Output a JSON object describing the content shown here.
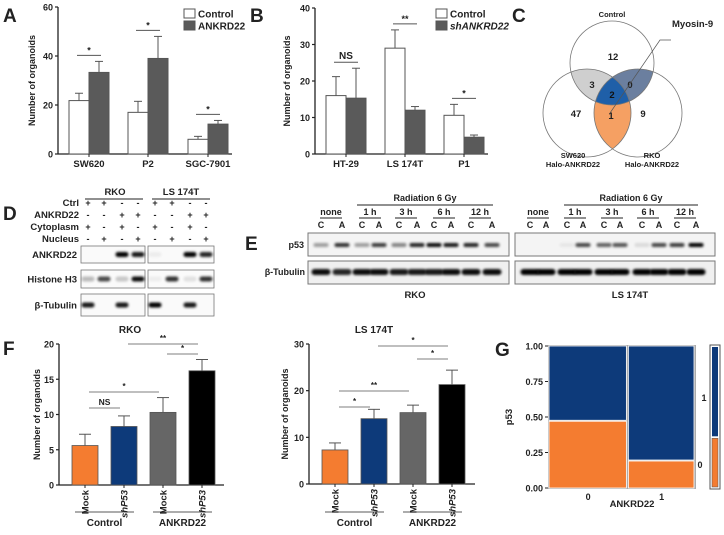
{
  "panel_labels": [
    "A",
    "B",
    "C",
    "D",
    "E",
    "F",
    "G"
  ],
  "chart_data": [
    {
      "id": "A",
      "type": "bar",
      "title": "",
      "xlabel": "",
      "ylabel": "Number of organoids",
      "ylim": [
        0,
        60
      ],
      "yticks": [
        "0",
        "20",
        "40",
        "60"
      ],
      "grid": false,
      "legend_position": "top-right",
      "categories": [
        "SW620",
        "P2",
        "SGC-7901"
      ],
      "series": [
        {
          "name": "Control",
          "values": [
            21.8,
            17.0,
            6.0
          ],
          "errors": [
            3.0,
            4.5,
            1.2
          ],
          "color": "#ffffff"
        },
        {
          "name": "ANKRD22",
          "values": [
            33.3,
            39.0,
            12.2
          ],
          "errors": [
            4.5,
            9.0,
            1.5
          ],
          "color": "#5a5a5a"
        }
      ],
      "significance": [
        "*",
        "*",
        "*"
      ]
    },
    {
      "id": "B",
      "type": "bar",
      "title": "",
      "xlabel": "",
      "ylabel": "Number of organoids",
      "ylim": [
        0,
        40
      ],
      "yticks": [
        "0",
        "10",
        "20",
        "30",
        "40"
      ],
      "grid": false,
      "legend_position": "top-right",
      "categories": [
        "HT-29",
        "LS 174T",
        "P1"
      ],
      "series": [
        {
          "name": "Control",
          "values": [
            16.0,
            29.0,
            10.6
          ],
          "errors": [
            5.2,
            5.0,
            3.0
          ],
          "color": "#ffffff"
        },
        {
          "name": "shANKRD22",
          "values": [
            15.3,
            12.0,
            4.6
          ],
          "errors": [
            8.2,
            1.0,
            0.6
          ],
          "color": "#5a5a5a"
        }
      ],
      "significance": [
        "NS",
        "**",
        "*"
      ]
    },
    {
      "id": "F1",
      "type": "bar",
      "title": "RKO",
      "xlabel": "",
      "ylabel": "Number of organoids",
      "ylim": [
        0,
        20
      ],
      "yticks": [
        "0",
        "5",
        "10",
        "15",
        "20"
      ],
      "grid": false,
      "categories": [
        "Mock",
        "shP53",
        "Mock",
        "shP53"
      ],
      "groups": [
        "Control",
        "ANKRD22"
      ],
      "values": [
        5.6,
        8.3,
        10.3,
        16.2
      ],
      "errors": [
        1.6,
        1.5,
        2.1,
        1.6
      ],
      "colors": [
        "#f47c30",
        "#0d3a7a",
        "#666666",
        "#000000"
      ],
      "significance": [
        {
          "label": "NS",
          "from": 0,
          "to": 1
        },
        {
          "label": "*",
          "from": 0,
          "to": 2
        },
        {
          "label": "**",
          "from": 1,
          "to": 3
        },
        {
          "label": "*",
          "from": 2,
          "to": 3
        }
      ]
    },
    {
      "id": "F2",
      "type": "bar",
      "title": "LS 174T",
      "xlabel": "",
      "ylabel": "Number of organoids",
      "ylim": [
        0,
        30
      ],
      "yticks": [
        "0",
        "10",
        "20",
        "30"
      ],
      "grid": false,
      "categories": [
        "Mock",
        "shP53",
        "Mock",
        "shP53"
      ],
      "groups": [
        "Control",
        "ANKRD22"
      ],
      "values": [
        7.3,
        14.0,
        15.3,
        21.3
      ],
      "errors": [
        1.5,
        2.0,
        1.6,
        3.1
      ],
      "colors": [
        "#f47c30",
        "#0d3a7a",
        "#666666",
        "#000000"
      ],
      "significance": [
        {
          "label": "*",
          "from": 0,
          "to": 1
        },
        {
          "label": "**",
          "from": 0,
          "to": 2
        },
        {
          "label": "*",
          "from": 1,
          "to": 3
        },
        {
          "label": "*",
          "from": 2,
          "to": 3
        }
      ]
    },
    {
      "id": "G",
      "type": "mosaic",
      "xlabel": "ANKRD22",
      "ylabel": "p53",
      "ylim": [
        0,
        1
      ],
      "yticks": [
        "0.00",
        "0.25",
        "0.50",
        "0.75",
        "1.00"
      ],
      "categories": [
        "0",
        "1"
      ],
      "category_share": [
        0.54,
        0.46
      ],
      "p53_levels": [
        "1",
        "0"
      ],
      "p53_zero_fraction": [
        0.47,
        0.19
      ],
      "marginal_p53_zero_fraction": 0.35,
      "colors": {
        "p53_1": "#0d3a7a",
        "p53_0": "#f47c30"
      }
    }
  ],
  "venn": {
    "sets": [
      "Control",
      "SW620",
      "Halo-ANKRD22",
      "RKO",
      "Halo-ANKRD22"
    ],
    "counts": {
      "control_only": "12",
      "control_sw620": "3",
      "control_rko": "0",
      "all_three": "2",
      "sw620_only": "47",
      "sw620_rko": "1",
      "rko_only": "9"
    },
    "callout": "Myosin-9",
    "colors": {
      "control_sw620": "#cfcfcf",
      "control_rko": "#6b7f9f",
      "all_three": "#1f5fa8",
      "sw620_rko": "#f5a063"
    }
  },
  "western_D": {
    "cell_lines": [
      "RKO",
      "LS 174T"
    ],
    "conditions": [
      {
        "name": "Ctrl",
        "marks": [
          "+",
          "+",
          "-",
          "-",
          "+",
          "+",
          "-",
          "-"
        ]
      },
      {
        "name": "ANKRD22",
        "marks": [
          "-",
          "-",
          "+",
          "+",
          "-",
          "-",
          "+",
          "+"
        ]
      },
      {
        "name": "Cytoplasm",
        "marks": [
          "+",
          "-",
          "+",
          "-",
          "+",
          "-",
          "+",
          "-"
        ]
      },
      {
        "name": "Nucleus",
        "marks": [
          "-",
          "+",
          "-",
          "+",
          "-",
          "+",
          "-",
          "+"
        ]
      }
    ],
    "blots": [
      {
        "name": "ANKRD22",
        "intensity": [
          [
            0,
            0,
            1,
            0.9
          ],
          [
            0.05,
            0,
            1,
            0.85
          ]
        ]
      },
      {
        "name": "Histone H3",
        "intensity": [
          [
            0.25,
            0.7,
            0.2,
            0.95
          ],
          [
            0.05,
            0.8,
            0.1,
            0.8
          ]
        ]
      },
      {
        "name": "β-Tubulin",
        "intensity": [
          [
            0.9,
            0,
            0.9,
            0
          ],
          [
            1,
            0,
            0.9,
            0
          ]
        ]
      }
    ]
  },
  "western_E": {
    "treatment": "Radiation 6 Gy",
    "timepoints": [
      "none",
      "1 h",
      "3 h",
      "6 h",
      "12 h"
    ],
    "lanes": [
      "C",
      "A",
      "C",
      "A",
      "C",
      "A",
      "C",
      "A",
      "C",
      "A"
    ],
    "cell_lines": [
      {
        "name": "RKO",
        "p53": [
          0.35,
          0.8,
          0.35,
          0.75,
          0.45,
          0.85,
          0.95,
          0.9,
          0.85,
          0.7
        ],
        "tubulin": [
          0.95,
          0.85,
          0.95,
          0.95,
          0.9,
          0.9,
          0.9,
          0.95,
          0.95,
          0.95
        ]
      },
      {
        "name": "LS 174T",
        "p53": [
          0,
          0,
          0.05,
          0.7,
          0.6,
          0.65,
          0.1,
          0.7,
          0.75,
          1
        ],
        "tubulin": [
          1,
          1,
          1,
          1,
          1,
          1,
          1,
          1,
          1,
          1
        ]
      }
    ],
    "blots": [
      "p53",
      "β-Tubulin"
    ]
  }
}
